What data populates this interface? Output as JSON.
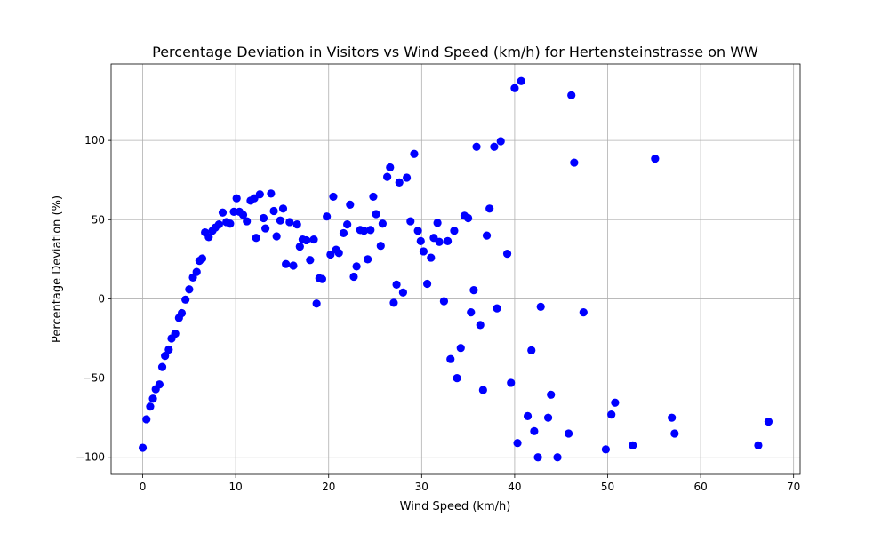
{
  "chart_data": {
    "type": "scatter",
    "title": "Percentage Deviation in Visitors vs Wind Speed (km/h) for Hertensteinstrasse on WW",
    "xlabel": "Wind Speed (km/h)",
    "ylabel": "Percentage Deviation (%)",
    "xlim": [
      -3.4,
      70.7
    ],
    "ylim": [
      -110.8,
      148.3
    ],
    "xticks": [
      0,
      10,
      20,
      30,
      40,
      50,
      60,
      70
    ],
    "yticks": [
      -100,
      -50,
      0,
      50,
      100
    ],
    "xtick_labels": [
      "0",
      "10",
      "20",
      "30",
      "40",
      "50",
      "60",
      "70"
    ],
    "ytick_labels": [
      "−100",
      "−50",
      "0",
      "50",
      "100"
    ],
    "grid": true,
    "marker_color": "#0000ff",
    "points": [
      [
        0.0,
        -94.0
      ],
      [
        0.4,
        -76.0
      ],
      [
        0.8,
        -68.0
      ],
      [
        1.1,
        -63.0
      ],
      [
        1.4,
        -57.0
      ],
      [
        1.8,
        -54.0
      ],
      [
        2.1,
        -43.0
      ],
      [
        2.4,
        -36.0
      ],
      [
        2.8,
        -32.0
      ],
      [
        3.1,
        -25.0
      ],
      [
        3.5,
        -22.0
      ],
      [
        3.9,
        -12.0
      ],
      [
        4.2,
        -9.0
      ],
      [
        4.6,
        -0.5
      ],
      [
        5.0,
        6.0
      ],
      [
        5.4,
        13.5
      ],
      [
        5.8,
        17.0
      ],
      [
        6.1,
        24.0
      ],
      [
        6.4,
        25.5
      ],
      [
        6.7,
        42.0
      ],
      [
        7.1,
        39.0
      ],
      [
        7.5,
        43.0
      ],
      [
        7.8,
        45.0
      ],
      [
        8.2,
        47.0
      ],
      [
        8.6,
        54.5
      ],
      [
        9.0,
        48.5
      ],
      [
        9.4,
        47.5
      ],
      [
        9.8,
        55.0
      ],
      [
        10.1,
        63.5
      ],
      [
        10.4,
        55.0
      ],
      [
        10.8,
        53.0
      ],
      [
        11.2,
        49.0
      ],
      [
        11.6,
        62.0
      ],
      [
        12.0,
        63.5
      ],
      [
        12.2,
        38.5
      ],
      [
        12.6,
        66.0
      ],
      [
        13.0,
        51.0
      ],
      [
        13.2,
        44.5
      ],
      [
        13.8,
        66.5
      ],
      [
        14.1,
        55.5
      ],
      [
        14.4,
        39.5
      ],
      [
        14.8,
        49.5
      ],
      [
        15.1,
        57.0
      ],
      [
        15.4,
        22.0
      ],
      [
        15.8,
        48.5
      ],
      [
        16.2,
        21.0
      ],
      [
        16.6,
        47.0
      ],
      [
        16.9,
        33.0
      ],
      [
        17.2,
        37.5
      ],
      [
        17.6,
        37.0
      ],
      [
        18.0,
        24.5
      ],
      [
        18.4,
        37.5
      ],
      [
        18.7,
        -3.0
      ],
      [
        19.0,
        13.0
      ],
      [
        19.3,
        12.5
      ],
      [
        19.8,
        52.0
      ],
      [
        20.2,
        28.0
      ],
      [
        20.5,
        64.5
      ],
      [
        20.8,
        31.0
      ],
      [
        21.1,
        29.0
      ],
      [
        21.6,
        41.5
      ],
      [
        22.0,
        47.0
      ],
      [
        22.3,
        59.5
      ],
      [
        22.7,
        14.0
      ],
      [
        23.0,
        20.5
      ],
      [
        23.4,
        43.5
      ],
      [
        23.8,
        43.0
      ],
      [
        24.2,
        25.0
      ],
      [
        24.5,
        43.5
      ],
      [
        24.8,
        64.5
      ],
      [
        25.1,
        53.5
      ],
      [
        25.6,
        33.5
      ],
      [
        25.8,
        47.5
      ],
      [
        26.3,
        77.0
      ],
      [
        26.6,
        83.0
      ],
      [
        27.0,
        -2.5
      ],
      [
        27.3,
        9.0
      ],
      [
        27.6,
        73.5
      ],
      [
        28.0,
        4.0
      ],
      [
        28.4,
        76.5
      ],
      [
        28.8,
        49.0
      ],
      [
        29.2,
        91.5
      ],
      [
        29.6,
        43.0
      ],
      [
        29.9,
        36.5
      ],
      [
        30.2,
        30.0
      ],
      [
        30.6,
        9.5
      ],
      [
        31.0,
        26.0
      ],
      [
        31.3,
        38.5
      ],
      [
        31.7,
        48.0
      ],
      [
        31.9,
        36.0
      ],
      [
        32.4,
        -1.5
      ],
      [
        32.8,
        36.5
      ],
      [
        33.1,
        -38.0
      ],
      [
        33.5,
        43.0
      ],
      [
        33.8,
        -50.0
      ],
      [
        34.2,
        -31.0
      ],
      [
        34.6,
        52.5
      ],
      [
        35.0,
        51.0
      ],
      [
        35.3,
        -8.5
      ],
      [
        35.6,
        5.5
      ],
      [
        35.9,
        96.0
      ],
      [
        36.3,
        -16.5
      ],
      [
        36.6,
        -57.5
      ],
      [
        37.0,
        40.0
      ],
      [
        37.3,
        57.0
      ],
      [
        37.8,
        96.0
      ],
      [
        38.1,
        -6.0
      ],
      [
        38.5,
        99.5
      ],
      [
        39.2,
        28.5
      ],
      [
        39.6,
        -53.0
      ],
      [
        40.0,
        133.0
      ],
      [
        40.3,
        -91.0
      ],
      [
        40.7,
        137.5
      ],
      [
        41.4,
        -74.0
      ],
      [
        41.8,
        -32.5
      ],
      [
        42.1,
        -83.5
      ],
      [
        42.5,
        -100.0
      ],
      [
        42.8,
        -5.0
      ],
      [
        43.6,
        -75.0
      ],
      [
        43.9,
        -60.5
      ],
      [
        44.6,
        -100.0
      ],
      [
        45.8,
        -85.0
      ],
      [
        46.1,
        128.5
      ],
      [
        46.4,
        86.0
      ],
      [
        47.4,
        -8.5
      ],
      [
        49.8,
        -95.0
      ],
      [
        50.4,
        -73.0
      ],
      [
        50.8,
        -65.5
      ],
      [
        52.7,
        -92.5
      ],
      [
        55.1,
        88.5
      ],
      [
        56.9,
        -75.0
      ],
      [
        57.2,
        -85.0
      ],
      [
        66.2,
        -92.5
      ],
      [
        67.3,
        -77.5
      ]
    ]
  }
}
